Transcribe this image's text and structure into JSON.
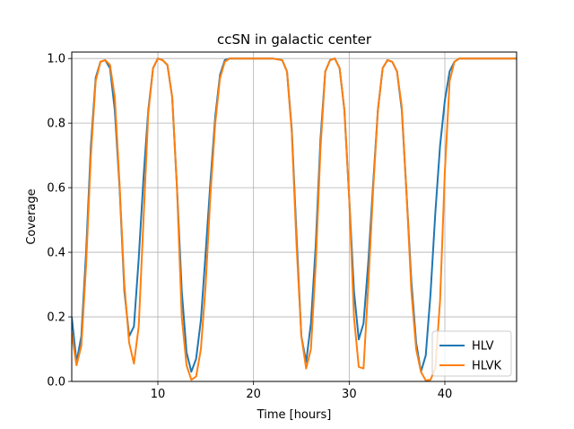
{
  "chart_data": {
    "type": "line",
    "title": "ccSN in galactic center",
    "xlabel": "Time [hours]",
    "ylabel": "Coverage",
    "xlim": [
      1,
      47.5
    ],
    "ylim": [
      0,
      1.02
    ],
    "xticks": [
      10,
      20,
      30,
      40
    ],
    "yticks": [
      0.0,
      0.2,
      0.4,
      0.6,
      0.8,
      1.0
    ],
    "xtick_labels": [
      "10",
      "20",
      "30",
      "40"
    ],
    "ytick_labels": [
      "0.0",
      "0.2",
      "0.4",
      "0.6",
      "0.8",
      "1.0"
    ],
    "grid": true,
    "legend_position": "lower-right",
    "series": [
      {
        "name": "HLV",
        "color": "#1f77b4",
        "x": [
          1,
          1.5,
          2,
          2.5,
          3,
          3.5,
          4,
          4.5,
          5,
          5.5,
          6,
          6.5,
          7,
          7.5,
          8,
          8.5,
          9,
          9.5,
          10,
          10.5,
          11,
          11.5,
          12,
          12.5,
          13,
          13.5,
          14,
          14.5,
          15,
          15.5,
          16,
          16.5,
          17,
          17.5,
          18,
          19,
          20,
          21,
          22,
          23,
          23.5,
          24,
          24.5,
          25,
          25.5,
          26,
          26.5,
          27,
          27.5,
          28,
          28.5,
          29,
          29.5,
          30,
          30.5,
          31,
          31.5,
          32,
          32.5,
          33,
          33.5,
          34,
          34.5,
          35,
          35.5,
          36,
          36.5,
          37,
          37.5,
          38,
          38.5,
          39,
          39.5,
          40,
          40.5,
          41,
          41.5,
          42,
          43,
          44,
          45,
          46,
          47,
          47.5
        ],
        "values": [
          0.2,
          0.06,
          0.14,
          0.4,
          0.73,
          0.94,
          0.99,
          0.995,
          0.97,
          0.84,
          0.6,
          0.28,
          0.14,
          0.17,
          0.38,
          0.63,
          0.84,
          0.97,
          1.0,
          0.995,
          0.98,
          0.88,
          0.6,
          0.28,
          0.09,
          0.03,
          0.07,
          0.19,
          0.4,
          0.62,
          0.82,
          0.95,
          0.995,
          1.0,
          1.0,
          1.0,
          1.0,
          1.0,
          1.0,
          0.995,
          0.96,
          0.78,
          0.45,
          0.14,
          0.06,
          0.18,
          0.42,
          0.75,
          0.96,
          0.995,
          1.0,
          0.97,
          0.84,
          0.57,
          0.28,
          0.13,
          0.18,
          0.37,
          0.61,
          0.84,
          0.97,
          0.995,
          0.99,
          0.96,
          0.84,
          0.58,
          0.31,
          0.12,
          0.03,
          0.08,
          0.27,
          0.52,
          0.73,
          0.87,
          0.96,
          0.99,
          1.0,
          1.0,
          1.0,
          1.0,
          1.0,
          1.0,
          1.0,
          1.0
        ]
      },
      {
        "name": "HLVK",
        "color": "#ff7f0e",
        "x": [
          1,
          1.5,
          2,
          2.5,
          3,
          3.5,
          4,
          4.5,
          5,
          5.5,
          6,
          6.5,
          7,
          7.5,
          8,
          8.5,
          9,
          9.5,
          10,
          10.5,
          11,
          11.5,
          12,
          12.5,
          13,
          13.5,
          14,
          14.5,
          15,
          15.5,
          16,
          16.5,
          17,
          17.5,
          18,
          19,
          20,
          21,
          22,
          23,
          23.5,
          24,
          24.5,
          25,
          25.5,
          26,
          26.5,
          27,
          27.5,
          28,
          28.5,
          29,
          29.5,
          30,
          30.5,
          31,
          31.5,
          32,
          32.5,
          33,
          33.5,
          34,
          34.5,
          35,
          35.5,
          36,
          36.5,
          37,
          37.5,
          38,
          38.5,
          39,
          39.5,
          40,
          40.5,
          41,
          41.5,
          42,
          43,
          44,
          45,
          46,
          47,
          47.5
        ],
        "values": [
          0.15,
          0.05,
          0.11,
          0.36,
          0.7,
          0.93,
          0.99,
          0.995,
          0.98,
          0.88,
          0.61,
          0.3,
          0.12,
          0.055,
          0.17,
          0.5,
          0.83,
          0.97,
          1.0,
          0.995,
          0.98,
          0.88,
          0.6,
          0.2,
          0.05,
          0.005,
          0.015,
          0.1,
          0.3,
          0.58,
          0.8,
          0.94,
          0.99,
          1.0,
          1.0,
          1.0,
          1.0,
          1.0,
          1.0,
          0.995,
          0.96,
          0.77,
          0.42,
          0.14,
          0.04,
          0.1,
          0.36,
          0.72,
          0.96,
          0.995,
          1.0,
          0.97,
          0.84,
          0.57,
          0.2,
          0.045,
          0.04,
          0.3,
          0.59,
          0.84,
          0.97,
          0.995,
          0.99,
          0.96,
          0.85,
          0.58,
          0.28,
          0.1,
          0.03,
          0.003,
          0.005,
          0.04,
          0.25,
          0.65,
          0.93,
          0.99,
          1.0,
          1.0,
          1.0,
          1.0,
          1.0,
          1.0,
          1.0,
          1.0
        ]
      }
    ]
  }
}
